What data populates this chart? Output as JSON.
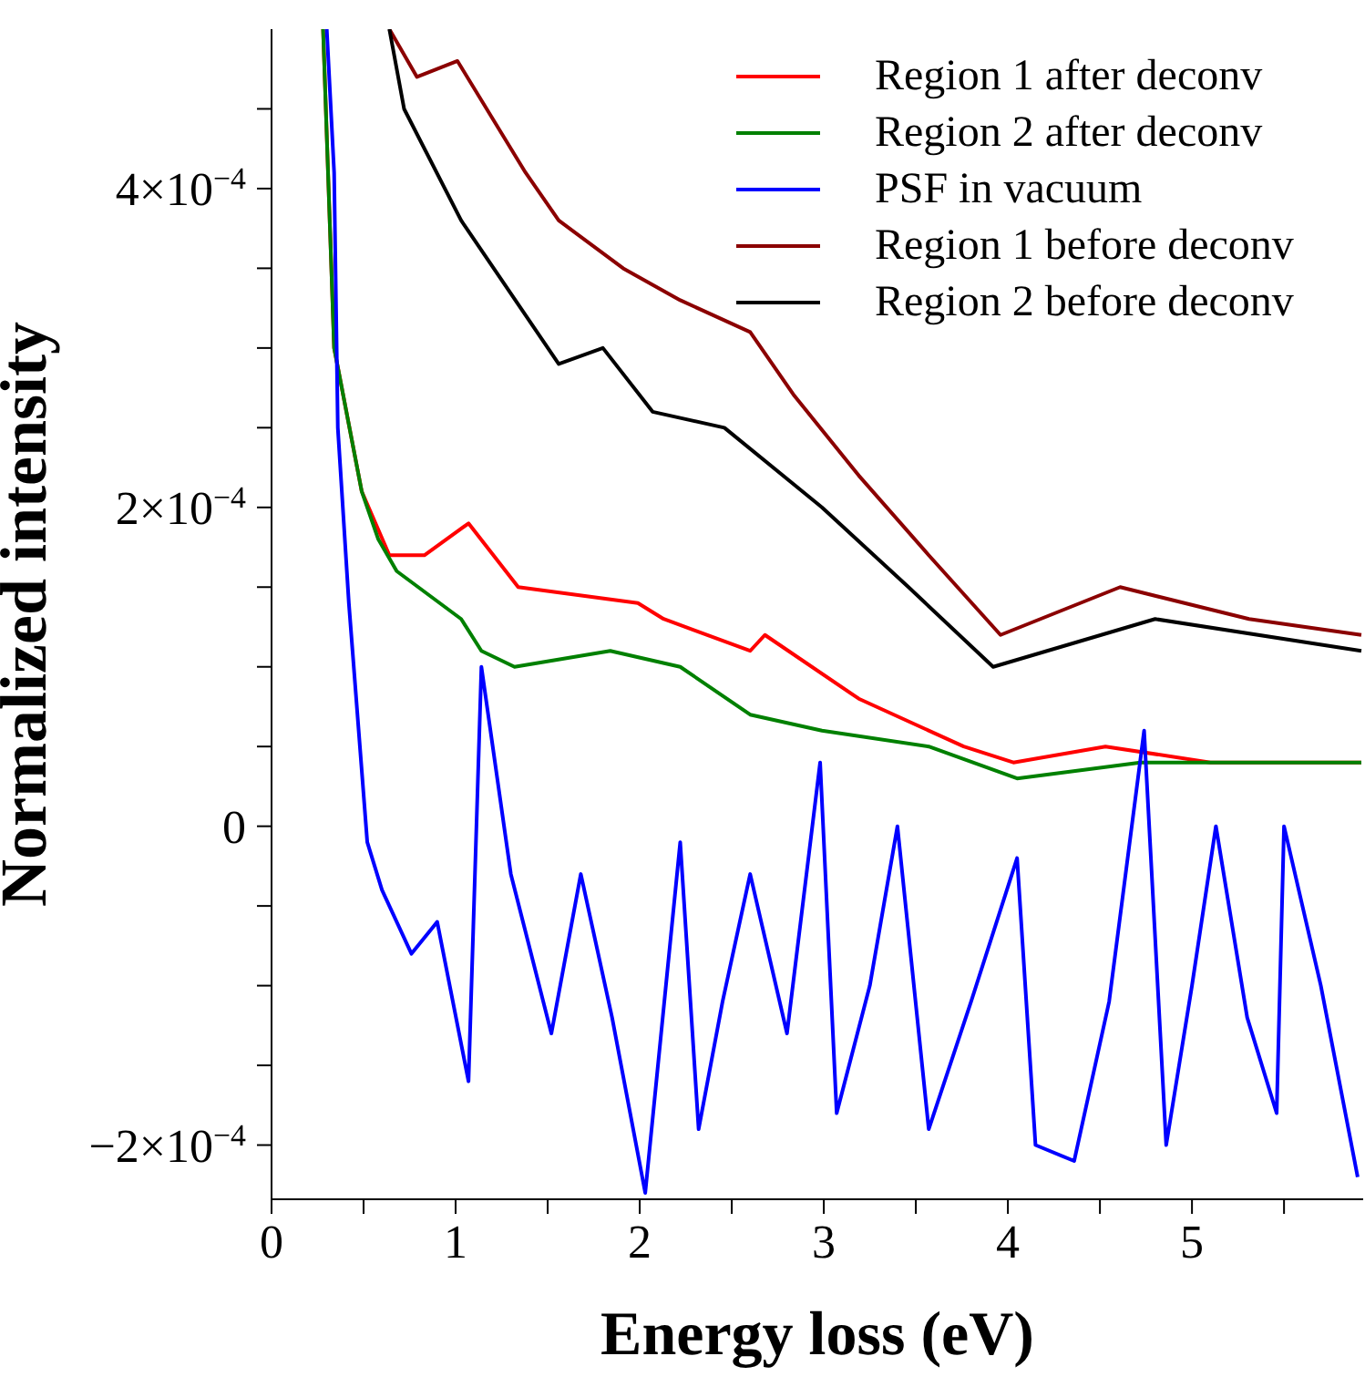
{
  "chart_data": {
    "type": "line",
    "xlabel": "Energy loss (eV)",
    "ylabel": "Normalized intensity",
    "xlim": [
      0,
      5.93
    ],
    "ylim": [
      -0.000234,
      0.0005
    ],
    "xticks": [
      0,
      {
        "value": 0.5,
        "label": null
      },
      1,
      {
        "value": 1.5,
        "label": null
      },
      2,
      {
        "value": 2.5,
        "label": null
      },
      3,
      {
        "value": 3.5,
        "label": null
      },
      4,
      {
        "value": 4.5,
        "label": null
      },
      5,
      {
        "value": 5.5,
        "label": null
      }
    ],
    "yticks": [
      {
        "value": -0.0002,
        "label": "−2×10$^{−4}$"
      },
      {
        "value": -0.00015,
        "label": null
      },
      {
        "value": -0.0001,
        "label": null
      },
      {
        "value": -5e-05,
        "label": null
      },
      0,
      {
        "value": 5e-05,
        "label": null
      },
      {
        "value": 0.0001,
        "label": null
      },
      {
        "value": 0.00015,
        "label": null
      },
      {
        "value": 0.0002,
        "label": "2×10$^{−4}$"
      },
      {
        "value": 0.00025,
        "label": null
      },
      {
        "value": 0.0003,
        "label": null
      },
      {
        "value": 0.00035,
        "label": null
      },
      {
        "value": 0.0004,
        "label": "4×10$^{−4}$"
      },
      {
        "value": 0.00045,
        "label": null
      }
    ],
    "legend": "top right",
    "grid": false,
    "series": [
      {
        "name": "Region 1 after deconv",
        "color": "#ff0000",
        "x": [
          0.28,
          0.34,
          0.49,
          0.64,
          0.83,
          1.07,
          1.34,
          1.99,
          2.13,
          2.6,
          2.68,
          3.19,
          3.76,
          4.03,
          4.53,
          5.1,
          5.92
        ],
        "values": [
          0.0005,
          0.0003,
          0.00021,
          0.00017,
          0.00017,
          0.00019,
          0.00015,
          0.00014,
          0.00013,
          0.00011,
          0.00012,
          8e-05,
          5e-05,
          4e-05,
          5e-05,
          4e-05,
          4e-05
        ]
      },
      {
        "name": "Region 2 after deconv",
        "color": "#008000",
        "x": [
          0.28,
          0.34,
          0.49,
          0.58,
          0.68,
          1.03,
          1.14,
          1.32,
          1.84,
          2.22,
          2.6,
          2.99,
          3.57,
          4.05,
          4.72,
          5.92
        ],
        "values": [
          0.0005,
          0.0003,
          0.00021,
          0.00018,
          0.00016,
          0.00013,
          0.00011,
          0.0001,
          0.00011,
          0.0001,
          7e-05,
          6e-05,
          5e-05,
          3e-05,
          4e-05,
          4e-05
        ]
      },
      {
        "name": "PSF in vacuum",
        "color": "#0000ff",
        "x": [
          0.3,
          0.34,
          0.36,
          0.42,
          0.44,
          0.52,
          0.6,
          0.76,
          0.9,
          1.07,
          1.14,
          1.3,
          1.52,
          1.68,
          1.85,
          2.03,
          2.22,
          2.32,
          2.45,
          2.6,
          2.8,
          2.98,
          3.07,
          3.25,
          3.4,
          3.57,
          3.8,
          4.05,
          4.15,
          4.36,
          4.55,
          4.74,
          4.86,
          5.0,
          5.13,
          5.3,
          5.46,
          5.5,
          5.7,
          5.9
        ],
        "values": [
          0.0005,
          0.00041,
          0.00025,
          0.00014,
          0.00011,
          -1e-05,
          -4e-05,
          -8e-05,
          -6e-05,
          -0.00016,
          0.0001,
          -3e-05,
          -0.00013,
          -3e-05,
          -0.00012,
          -0.00023,
          -1e-05,
          -0.00019,
          -0.00011,
          -3e-05,
          -0.00013,
          4e-05,
          -0.00018,
          -0.0001,
          0,
          -0.00019,
          -0.00011,
          -2e-05,
          -0.0002,
          -0.00021,
          -0.00011,
          6e-05,
          -0.0002,
          -0.0001,
          0,
          -0.00012,
          -0.00018,
          0,
          -0.0001,
          -0.00022
        ]
      },
      {
        "name": "Region 1 before deconv",
        "color": "#8b0000",
        "x": [
          0.64,
          0.79,
          1.01,
          1.38,
          1.56,
          1.91,
          2.22,
          2.6,
          2.84,
          3.19,
          3.57,
          3.96,
          4.61,
          5.31,
          5.92
        ],
        "values": [
          0.0005,
          0.00047,
          0.00048,
          0.00041,
          0.00038,
          0.00035,
          0.00033,
          0.00031,
          0.00027,
          0.00022,
          0.00017,
          0.00012,
          0.00015,
          0.00013,
          0.00012
        ]
      },
      {
        "name": "Region 2 before deconv",
        "color": "#000000",
        "x": [
          0.64,
          0.72,
          1.03,
          1.56,
          1.8,
          2.07,
          2.46,
          2.99,
          3.46,
          3.92,
          4.8,
          5.92
        ],
        "values": [
          0.0005,
          0.00045,
          0.00038,
          0.00029,
          0.0003,
          0.00026,
          0.00025,
          0.0002,
          0.00015,
          0.0001,
          0.00013,
          0.00011
        ]
      }
    ]
  }
}
